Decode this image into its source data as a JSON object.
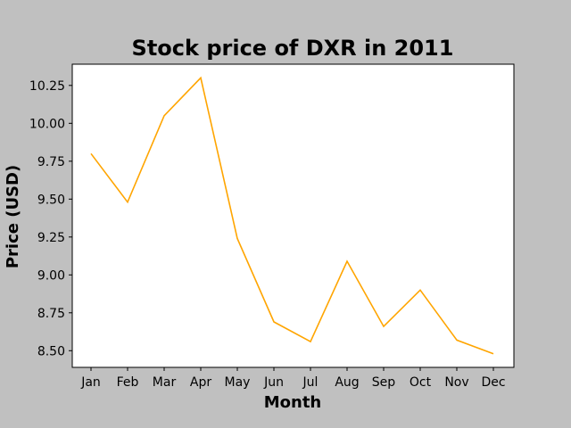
{
  "chart_data": {
    "type": "line",
    "title": "Stock price of DXR in 2011",
    "xlabel": "Month",
    "ylabel": "Price (USD)",
    "categories": [
      "Jan",
      "Feb",
      "Mar",
      "Apr",
      "May",
      "Jun",
      "Jul",
      "Aug",
      "Sep",
      "Oct",
      "Nov",
      "Dec"
    ],
    "series": [
      {
        "values": [
          9.8,
          9.48,
          10.05,
          10.3,
          9.24,
          8.69,
          8.56,
          9.09,
          8.66,
          8.9,
          8.57,
          8.48
        ],
        "color": "#ffa500"
      }
    ],
    "ylim": [
      8.39,
      10.39
    ],
    "yticks": [
      "8.50",
      "8.75",
      "9.00",
      "9.25",
      "9.50",
      "9.75",
      "10.00",
      "10.25"
    ],
    "grid": false,
    "legend": "none"
  },
  "colors": {
    "figure_background": "#c0c0c0",
    "plot_background": "#ffffff",
    "line": "#ffa500"
  }
}
